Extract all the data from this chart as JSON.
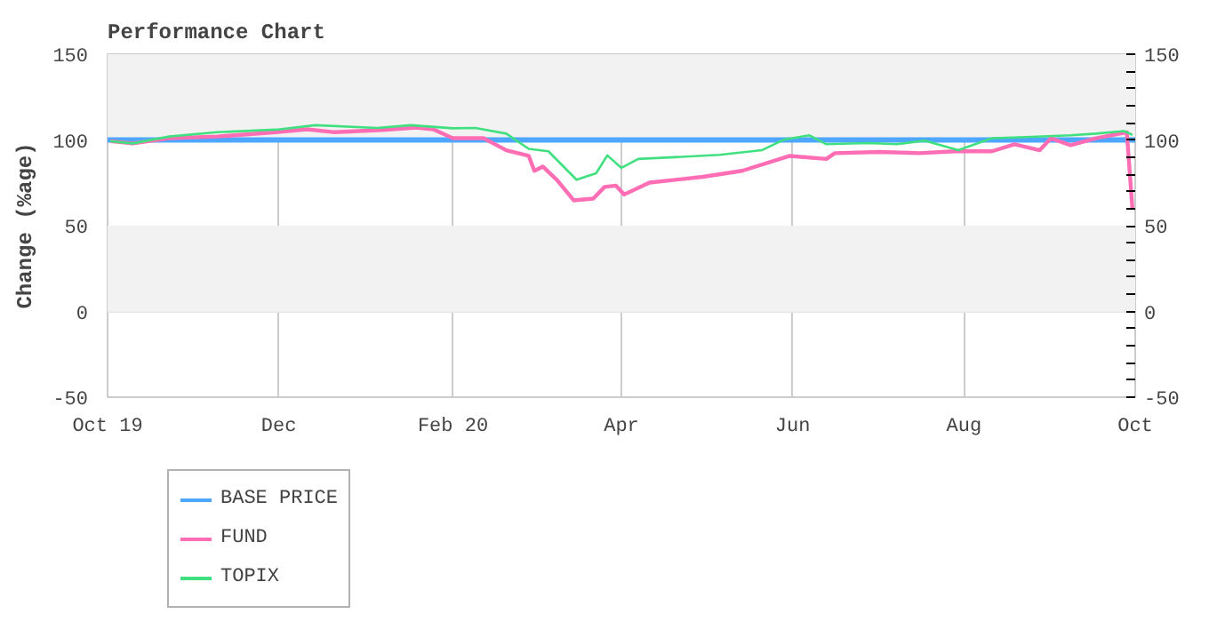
{
  "chart_data": {
    "type": "line",
    "title": "Performance Chart",
    "ylabel": "Change (%age)",
    "xlim": [
      "2019-10-01",
      "2020-10-01"
    ],
    "xticks": [
      {
        "value": "2019-10-01",
        "label": "Oct 19"
      },
      {
        "value": "2019-12-01",
        "label": "Dec"
      },
      {
        "value": "2020-02-01",
        "label": "Feb 20"
      },
      {
        "value": "2020-04-01",
        "label": "Apr"
      },
      {
        "value": "2020-06-01",
        "label": "Jun"
      },
      {
        "value": "2020-08-01",
        "label": "Aug"
      },
      {
        "value": "2020-10-01",
        "label": "Oct"
      }
    ],
    "ylim": [
      -50,
      150
    ],
    "yticks": [
      -50,
      0,
      50,
      100,
      150
    ],
    "y2lim": [
      -50,
      150
    ],
    "y2ticks": [
      -50,
      {
        "value": -40,
        "label": null
      },
      {
        "value": -30,
        "label": null
      },
      {
        "value": -20,
        "label": null
      },
      {
        "value": -10,
        "label": null
      },
      0,
      {
        "value": 10,
        "label": null
      },
      {
        "value": 20,
        "label": null
      },
      {
        "value": 30,
        "label": null
      },
      {
        "value": 40,
        "label": null
      },
      50,
      {
        "value": 60,
        "label": null
      },
      {
        "value": 70,
        "label": null
      },
      {
        "value": 80,
        "label": null
      },
      {
        "value": 90,
        "label": null
      },
      100,
      {
        "value": 110,
        "label": null
      },
      {
        "value": 120,
        "label": null
      },
      {
        "value": 130,
        "label": null
      },
      {
        "value": 140,
        "label": null
      },
      150
    ],
    "grid": true,
    "legend": "bottom left",
    "line_style": "solid",
    "series": [
      {
        "name": "BASE PRICE",
        "color": "#4da6ff",
        "x": [
          "2019-10-01",
          "2020-10-01"
        ],
        "values": [
          100,
          100
        ]
      },
      {
        "name": "FUND",
        "color": "#ff6eb4",
        "x": [
          "2019-10-02",
          "2019-10-10",
          "2019-10-23",
          "2019-11-09",
          "2019-11-30",
          "2019-12-11",
          "2019-12-21",
          "2020-01-07",
          "2020-01-19",
          "2020-01-25",
          "2020-02-01",
          "2020-02-12",
          "2020-02-20",
          "2020-02-28",
          "2020-03-01",
          "2020-03-04",
          "2020-03-09",
          "2020-03-15",
          "2020-03-22",
          "2020-03-26",
          "2020-03-30",
          "2020-04-02",
          "2020-04-11",
          "2020-04-30",
          "2020-05-14",
          "2020-05-31",
          "2020-06-13",
          "2020-06-16",
          "2020-07-02",
          "2020-07-16",
          "2020-07-29",
          "2020-08-11",
          "2020-08-19",
          "2020-08-28",
          "2020-09-01",
          "2020-09-08",
          "2020-09-17",
          "2020-09-28",
          "2020-09-30"
        ],
        "values": [
          99.3,
          98,
          101,
          102,
          104.5,
          106.2,
          104.5,
          105.8,
          107.2,
          106.2,
          101,
          101,
          94,
          90.7,
          82,
          84.5,
          76.8,
          64.8,
          65.8,
          72.6,
          73.4,
          68.2,
          75.1,
          78.5,
          82,
          90.7,
          88.9,
          92.3,
          93,
          92.3,
          93.4,
          93.4,
          97.5,
          94,
          101,
          96.9,
          101,
          104.5,
          60
        ]
      },
      {
        "name": "TOPIX",
        "color": "#40e080",
        "x": [
          "2019-10-02",
          "2019-10-10",
          "2019-10-23",
          "2019-11-09",
          "2019-11-30",
          "2019-12-14",
          "2020-01-05",
          "2020-01-17",
          "2020-02-01",
          "2020-02-09",
          "2020-02-20",
          "2020-02-28",
          "2020-03-06",
          "2020-03-16",
          "2020-03-23",
          "2020-03-27",
          "2020-04-01",
          "2020-04-07",
          "2020-05-06",
          "2020-05-21",
          "2020-05-29",
          "2020-06-07",
          "2020-06-13",
          "2020-06-28",
          "2020-07-08",
          "2020-07-18",
          "2020-07-30",
          "2020-08-11",
          "2020-08-23",
          "2020-09-08",
          "2020-09-17",
          "2020-09-27",
          "2020-09-30"
        ],
        "values": [
          99.3,
          98,
          102,
          104.5,
          106,
          108.6,
          107,
          108.6,
          106.8,
          107,
          103.7,
          94.8,
          93.4,
          76.8,
          80.6,
          91,
          83.7,
          88.9,
          91.3,
          94,
          100.3,
          102.7,
          97.5,
          98.2,
          97.5,
          99.6,
          94,
          101,
          101.7,
          102.7,
          103.7,
          105.2,
          103
        ]
      }
    ]
  }
}
